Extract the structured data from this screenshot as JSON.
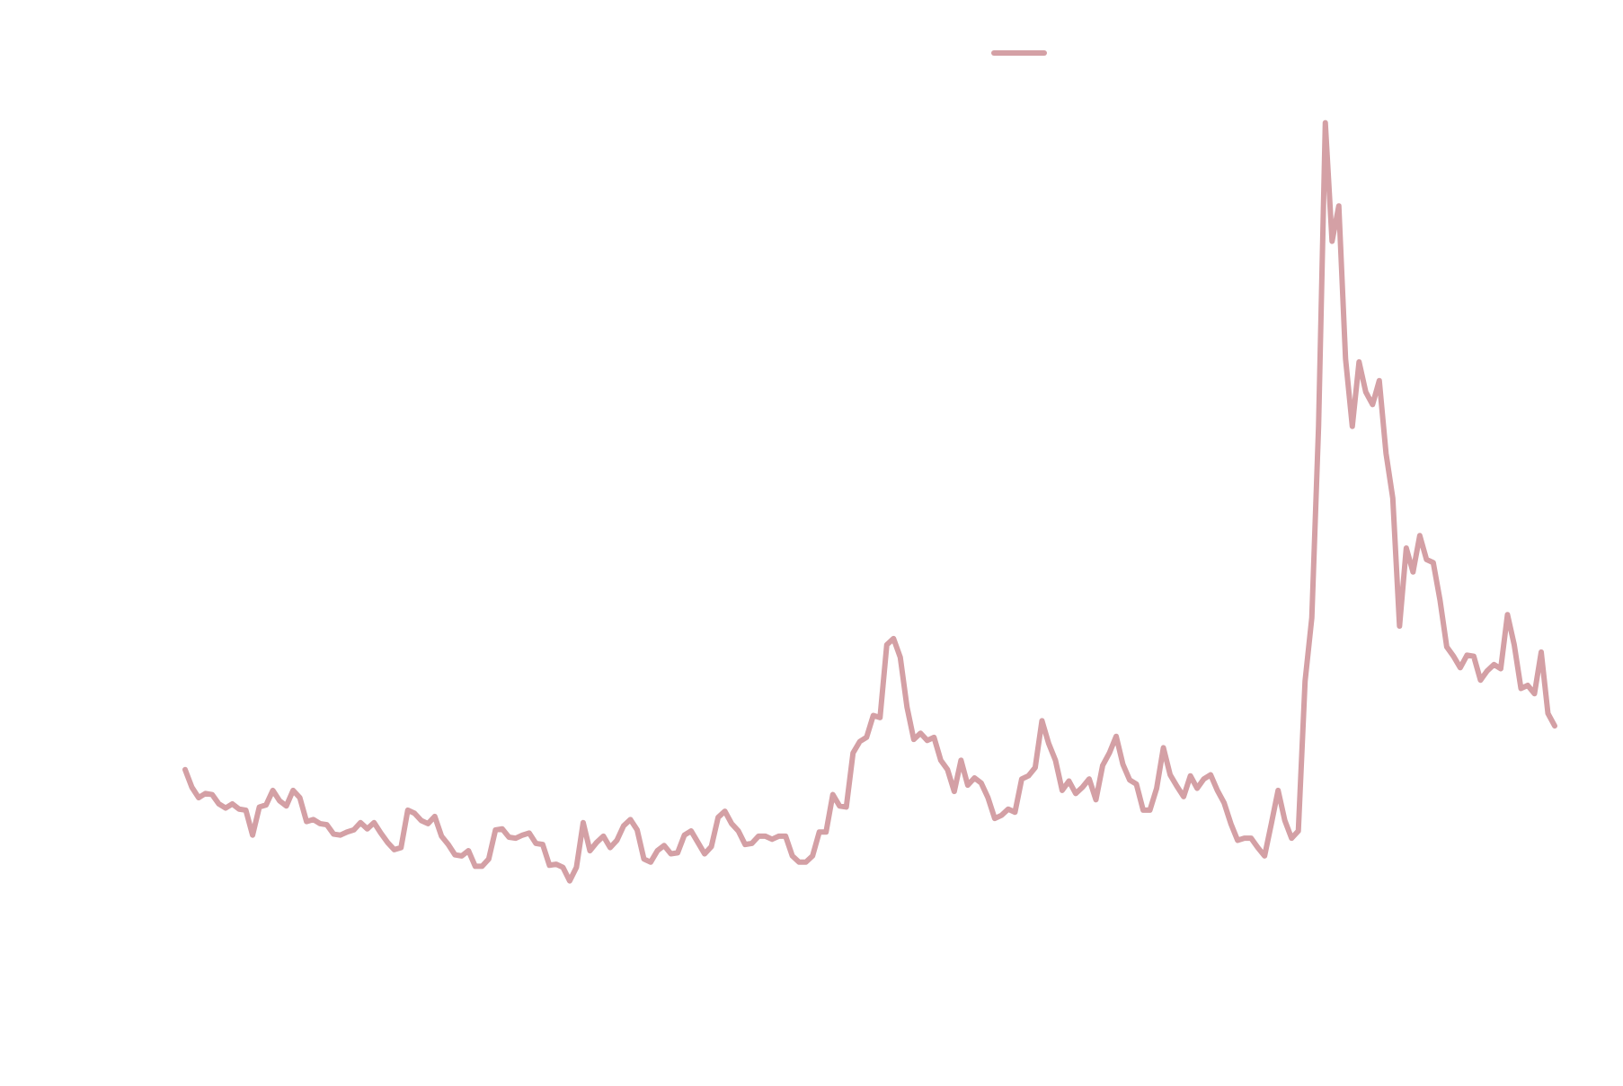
{
  "chart_data": {
    "type": "line",
    "color": "#d4a0a5",
    "legend": true,
    "ylim": [
      0,
      900
    ],
    "values": [
      160,
      143,
      133,
      137,
      136,
      127,
      123,
      127,
      122,
      121,
      97,
      124,
      126,
      140,
      130,
      125,
      140,
      133,
      110,
      112,
      108,
      107,
      98,
      97,
      100,
      102,
      109,
      103,
      109,
      99,
      90,
      83,
      85,
      121,
      118,
      111,
      108,
      115,
      96,
      88,
      78,
      77,
      82,
      67,
      67,
      74,
      102,
      103,
      95,
      94,
      97,
      99,
      89,
      88,
      68,
      69,
      66,
      53,
      66,
      109,
      82,
      90,
      96,
      85,
      92,
      106,
      112,
      102,
      74,
      71,
      82,
      87,
      79,
      80,
      97,
      101,
      90,
      79,
      86,
      114,
      120,
      108,
      101,
      88,
      89,
      96,
      96,
      93,
      96,
      96,
      77,
      71,
      71,
      77,
      100,
      100,
      136,
      125,
      124,
      176,
      187,
      191,
      212,
      210,
      280,
      286,
      268,
      220,
      189,
      195,
      188,
      191,
      169,
      160,
      139,
      169,
      145,
      152,
      147,
      133,
      113,
      116,
      122,
      119,
      151,
      154,
      162,
      207,
      185,
      169,
      140,
      149,
      137,
      143,
      151,
      131,
      164,
      176,
      192,
      165,
      150,
      146,
      121,
      121,
      142,
      181,
      155,
      144,
      134,
      154,
      142,
      151,
      155,
      140,
      128,
      108,
      92,
      94,
      94,
      85,
      77,
      108,
      140,
      111,
      94,
      101,
      245,
      306,
      490,
      782,
      668,
      702,
      555,
      490,
      552,
      523,
      511,
      534,
      464,
      421,
      298,
      373,
      350,
      385,
      362,
      359,
      323,
      278,
      269,
      258,
      270,
      269,
      246,
      255,
      261,
      257,
      309,
      280,
      238,
      241,
      233,
      273,
      214,
      202
    ]
  }
}
